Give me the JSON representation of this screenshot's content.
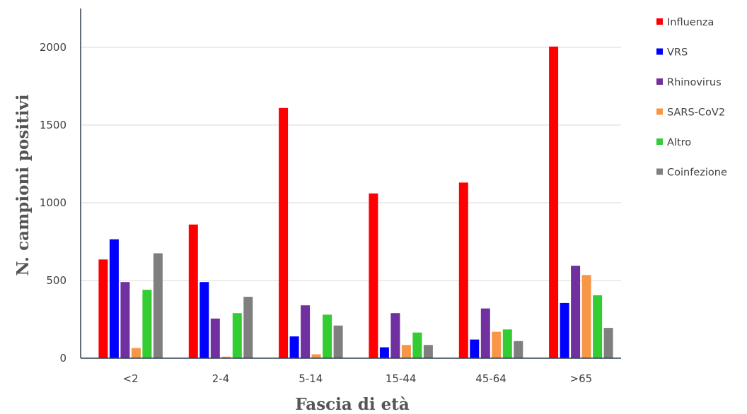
{
  "chart_data": {
    "type": "bar",
    "categories": [
      "<2",
      "2-4",
      "5-14",
      "15-44",
      "45-64",
      ">65"
    ],
    "series": [
      {
        "name": "Influenza",
        "color": "#ff0000",
        "values": [
          635,
          860,
          1610,
          1060,
          1130,
          2005
        ]
      },
      {
        "name": "VRS",
        "color": "#0000ff",
        "values": [
          765,
          490,
          140,
          70,
          120,
          355
        ]
      },
      {
        "name": "Rhinovirus",
        "color": "#7030a0",
        "values": [
          490,
          255,
          340,
          290,
          320,
          595
        ]
      },
      {
        "name": "SARS-CoV2",
        "color": "#f79646",
        "values": [
          65,
          10,
          25,
          85,
          170,
          535
        ]
      },
      {
        "name": "Altro",
        "color": "#33cc33",
        "values": [
          440,
          290,
          280,
          165,
          185,
          405
        ]
      },
      {
        "name": "Coinfezione",
        "color": "#7f7f7f",
        "values": [
          675,
          395,
          210,
          85,
          110,
          195
        ]
      }
    ],
    "title": "",
    "xlabel": "Fascia di età",
    "ylabel": "N. campioni positivi",
    "ylim": [
      0,
      2250
    ],
    "yticks": [
      0,
      500,
      1000,
      1500,
      2000
    ],
    "grid": true,
    "legend": "right"
  }
}
